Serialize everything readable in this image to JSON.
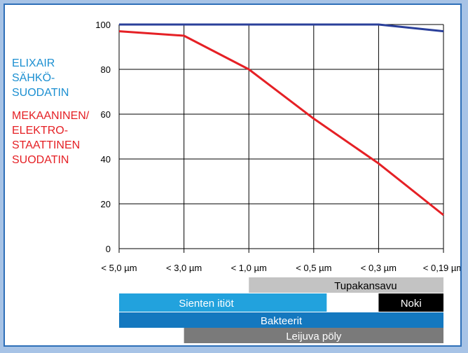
{
  "chart_data": {
    "type": "line",
    "categories": [
      "< 5,0 µm",
      "< 3,0 µm",
      "< 1,0 µm",
      "< 0,5 µm",
      "< 0,3 µm",
      "< 0,19 µm"
    ],
    "yticks": [
      "100",
      "80",
      "60",
      "40",
      "20",
      "0"
    ],
    "ylim": [
      0,
      100
    ],
    "grid": true,
    "series": [
      {
        "name_lines": [
          "ELIXAIR",
          "SÄHKÖ-",
          "SUODATIN"
        ],
        "color": "#2a3f9a",
        "values": [
          100,
          100,
          100,
          100,
          100,
          97
        ]
      },
      {
        "name_lines": [
          "MEKAANINEN/",
          "ELEKTRO-",
          "STAATTINEN",
          "SUODATIN"
        ],
        "color": "#e52025",
        "values": [
          97,
          95,
          80,
          58,
          38,
          15
        ]
      }
    ],
    "legend_colors": [
      "#1b8fd1",
      "#e52025"
    ],
    "particle_bands": [
      {
        "label": "Tupakansavu",
        "start": 2.0,
        "end": 5.0,
        "color": "#c3c3c3",
        "text_color": "#000000"
      },
      {
        "label": "Sienten itiöt",
        "start": 0.0,
        "end": 3.2,
        "color": "#22a2dd",
        "text_color": "#ffffff"
      },
      {
        "label": "Noki",
        "start": 4.0,
        "end": 5.0,
        "color": "#000000",
        "text_color": "#ffffff"
      },
      {
        "label": "Bakteerit",
        "start": 0.0,
        "end": 5.0,
        "color": "#1478bf",
        "text_color": "#ffffff"
      },
      {
        "label": "Leijuva pöly",
        "start": 1.0,
        "end": 5.0,
        "color": "#7a7a7a",
        "text_color": "#ffffff"
      }
    ]
  }
}
